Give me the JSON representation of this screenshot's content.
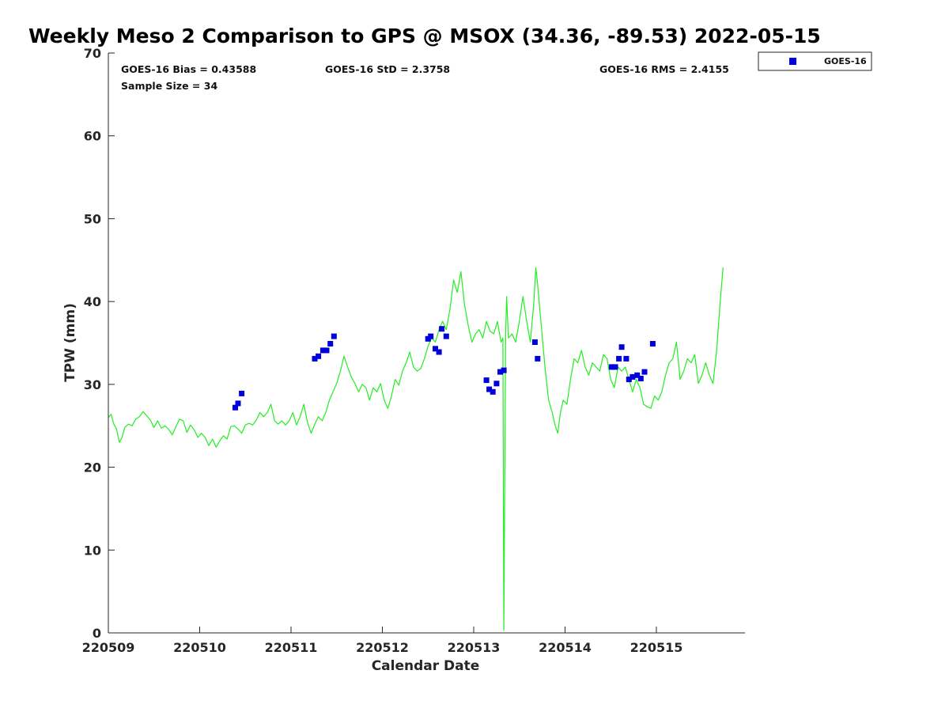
{
  "chart_data": {
    "type": "scatter",
    "title": "Weekly Meso 2 Comparison to GPS @ MSOX (34.36, -89.53) 2022-05-15",
    "xlabel": "Calendar Date",
    "ylabel": "TPW (mm)",
    "x_unit": "days",
    "xlim": [
      0,
      6.97
    ],
    "ylim": [
      0,
      70
    ],
    "x_ticks": [
      0,
      1,
      2,
      3,
      4,
      5,
      6
    ],
    "x_tick_labels": [
      "220509",
      "220510",
      "220511",
      "220512",
      "220513",
      "220514",
      "220515"
    ],
    "y_ticks": [
      0,
      10,
      20,
      30,
      40,
      50,
      60,
      70
    ],
    "y_tick_labels": [
      "0",
      "10",
      "20",
      "30",
      "40",
      "50",
      "60",
      "70"
    ],
    "grid": false,
    "legend_placement": "outside-top-right",
    "stats": {
      "bias": "GOES-16 Bias = 0.43588",
      "std": "GOES-16 StD = 2.3758",
      "rms": "GOES-16 RMS = 2.4155",
      "sample": "Sample Size = 34"
    },
    "series": [
      {
        "name": "GOES-16",
        "kind": "markers",
        "color": "#0000dd",
        "points": [
          [
            1.39,
            27.2
          ],
          [
            1.42,
            27.7
          ],
          [
            1.46,
            28.9
          ],
          [
            2.26,
            33.1
          ],
          [
            2.3,
            33.4
          ],
          [
            2.35,
            34.1
          ],
          [
            2.39,
            34.1
          ],
          [
            2.43,
            34.9
          ],
          [
            2.47,
            35.8
          ],
          [
            3.5,
            35.5
          ],
          [
            3.53,
            35.8
          ],
          [
            3.58,
            34.3
          ],
          [
            3.62,
            33.9
          ],
          [
            3.65,
            36.7
          ],
          [
            3.7,
            35.8
          ],
          [
            4.14,
            30.5
          ],
          [
            4.17,
            29.4
          ],
          [
            4.21,
            29.1
          ],
          [
            4.25,
            30.1
          ],
          [
            4.29,
            31.5
          ],
          [
            4.33,
            31.7
          ],
          [
            4.67,
            35.1
          ],
          [
            4.7,
            33.1
          ],
          [
            5.51,
            32.1
          ],
          [
            5.55,
            32.1
          ],
          [
            5.59,
            33.1
          ],
          [
            5.62,
            34.5
          ],
          [
            5.67,
            33.1
          ],
          [
            5.7,
            30.6
          ],
          [
            5.74,
            30.9
          ],
          [
            5.79,
            31.1
          ],
          [
            5.83,
            30.7
          ],
          [
            5.87,
            31.5
          ],
          [
            5.96,
            34.9
          ]
        ]
      },
      {
        "name": "",
        "kind": "line",
        "color": "#22ee22",
        "points": [
          [
            0.0,
            26.0
          ],
          [
            0.03,
            26.4
          ],
          [
            0.06,
            25.2
          ],
          [
            0.09,
            24.6
          ],
          [
            0.12,
            23.0
          ],
          [
            0.15,
            23.6
          ],
          [
            0.18,
            24.8
          ],
          [
            0.22,
            25.2
          ],
          [
            0.26,
            25.0
          ],
          [
            0.3,
            25.8
          ],
          [
            0.34,
            26.1
          ],
          [
            0.38,
            26.7
          ],
          [
            0.42,
            26.2
          ],
          [
            0.46,
            25.7
          ],
          [
            0.5,
            24.8
          ],
          [
            0.54,
            25.6
          ],
          [
            0.58,
            24.7
          ],
          [
            0.62,
            25.0
          ],
          [
            0.66,
            24.6
          ],
          [
            0.7,
            23.9
          ],
          [
            0.74,
            24.9
          ],
          [
            0.78,
            25.8
          ],
          [
            0.82,
            25.6
          ],
          [
            0.86,
            24.2
          ],
          [
            0.9,
            25.1
          ],
          [
            0.94,
            24.5
          ],
          [
            0.98,
            23.6
          ],
          [
            1.02,
            24.1
          ],
          [
            1.06,
            23.6
          ],
          [
            1.1,
            22.6
          ],
          [
            1.14,
            23.4
          ],
          [
            1.18,
            22.4
          ],
          [
            1.22,
            23.2
          ],
          [
            1.26,
            23.8
          ],
          [
            1.3,
            23.4
          ],
          [
            1.34,
            24.9
          ],
          [
            1.38,
            25.0
          ],
          [
            1.42,
            24.6
          ],
          [
            1.46,
            24.1
          ],
          [
            1.5,
            25.1
          ],
          [
            1.54,
            25.3
          ],
          [
            1.58,
            25.1
          ],
          [
            1.62,
            25.7
          ],
          [
            1.66,
            26.6
          ],
          [
            1.7,
            26.1
          ],
          [
            1.74,
            26.6
          ],
          [
            1.78,
            27.6
          ],
          [
            1.82,
            25.6
          ],
          [
            1.86,
            25.2
          ],
          [
            1.9,
            25.6
          ],
          [
            1.94,
            25.1
          ],
          [
            1.98,
            25.6
          ],
          [
            2.02,
            26.6
          ],
          [
            2.06,
            25.1
          ],
          [
            2.1,
            26.1
          ],
          [
            2.14,
            27.6
          ],
          [
            2.18,
            25.4
          ],
          [
            2.22,
            24.1
          ],
          [
            2.26,
            25.2
          ],
          [
            2.3,
            26.1
          ],
          [
            2.34,
            25.6
          ],
          [
            2.38,
            26.6
          ],
          [
            2.42,
            28.1
          ],
          [
            2.46,
            29.1
          ],
          [
            2.5,
            30.1
          ],
          [
            2.54,
            31.6
          ],
          [
            2.58,
            33.4
          ],
          [
            2.62,
            32.1
          ],
          [
            2.66,
            30.9
          ],
          [
            2.7,
            30.1
          ],
          [
            2.74,
            29.1
          ],
          [
            2.78,
            30.0
          ],
          [
            2.82,
            29.6
          ],
          [
            2.86,
            28.1
          ],
          [
            2.9,
            29.6
          ],
          [
            2.94,
            29.1
          ],
          [
            2.98,
            30.1
          ],
          [
            3.02,
            28.1
          ],
          [
            3.06,
            27.1
          ],
          [
            3.1,
            28.6
          ],
          [
            3.14,
            30.6
          ],
          [
            3.18,
            29.9
          ],
          [
            3.22,
            31.6
          ],
          [
            3.26,
            32.6
          ],
          [
            3.3,
            33.9
          ],
          [
            3.34,
            32.1
          ],
          [
            3.38,
            31.6
          ],
          [
            3.42,
            31.9
          ],
          [
            3.46,
            33.1
          ],
          [
            3.5,
            34.6
          ],
          [
            3.54,
            35.6
          ],
          [
            3.58,
            35.1
          ],
          [
            3.62,
            36.6
          ],
          [
            3.66,
            37.6
          ],
          [
            3.7,
            36.6
          ],
          [
            3.74,
            39.1
          ],
          [
            3.78,
            42.6
          ],
          [
            3.82,
            41.1
          ],
          [
            3.86,
            43.6
          ],
          [
            3.9,
            39.6
          ],
          [
            3.94,
            37.1
          ],
          [
            3.98,
            35.1
          ],
          [
            4.02,
            36.1
          ],
          [
            4.06,
            36.6
          ],
          [
            4.1,
            35.6
          ],
          [
            4.14,
            37.6
          ],
          [
            4.18,
            36.4
          ],
          [
            4.22,
            36.1
          ],
          [
            4.26,
            37.6
          ],
          [
            4.3,
            35.1
          ],
          [
            4.32,
            35.6
          ],
          [
            4.33,
            0.3
          ],
          [
            4.35,
            36.1
          ],
          [
            4.36,
            40.6
          ],
          [
            4.38,
            35.6
          ],
          [
            4.42,
            36.1
          ],
          [
            4.46,
            35.1
          ],
          [
            4.5,
            37.6
          ],
          [
            4.54,
            40.6
          ],
          [
            4.58,
            37.6
          ],
          [
            4.62,
            35.1
          ],
          [
            4.66,
            40.1
          ],
          [
            4.68,
            44.1
          ],
          [
            4.7,
            42.1
          ],
          [
            4.74,
            37.1
          ],
          [
            4.78,
            32.1
          ],
          [
            4.82,
            28.1
          ],
          [
            4.86,
            26.6
          ],
          [
            4.89,
            25.1
          ],
          [
            4.92,
            24.1
          ],
          [
            4.95,
            26.6
          ],
          [
            4.98,
            28.1
          ],
          [
            5.02,
            27.6
          ],
          [
            5.06,
            30.6
          ],
          [
            5.1,
            33.1
          ],
          [
            5.14,
            32.6
          ],
          [
            5.18,
            34.1
          ],
          [
            5.22,
            32.1
          ],
          [
            5.26,
            31.1
          ],
          [
            5.3,
            32.6
          ],
          [
            5.34,
            32.1
          ],
          [
            5.38,
            31.6
          ],
          [
            5.42,
            33.6
          ],
          [
            5.46,
            33.1
          ],
          [
            5.5,
            30.6
          ],
          [
            5.54,
            29.6
          ],
          [
            5.58,
            32.1
          ],
          [
            5.62,
            31.6
          ],
          [
            5.66,
            32.1
          ],
          [
            5.7,
            30.6
          ],
          [
            5.74,
            29.1
          ],
          [
            5.78,
            30.6
          ],
          [
            5.82,
            29.6
          ],
          [
            5.86,
            27.6
          ],
          [
            5.9,
            27.3
          ],
          [
            5.94,
            27.1
          ],
          [
            5.98,
            28.6
          ],
          [
            6.02,
            28.1
          ],
          [
            6.06,
            29.1
          ],
          [
            6.1,
            31.1
          ],
          [
            6.14,
            32.6
          ],
          [
            6.18,
            33.1
          ],
          [
            6.22,
            35.1
          ],
          [
            6.26,
            30.6
          ],
          [
            6.3,
            31.6
          ],
          [
            6.34,
            33.1
          ],
          [
            6.38,
            32.6
          ],
          [
            6.42,
            33.6
          ],
          [
            6.46,
            30.1
          ],
          [
            6.5,
            31.1
          ],
          [
            6.54,
            32.6
          ],
          [
            6.58,
            31.1
          ],
          [
            6.62,
            30.1
          ],
          [
            6.66,
            34.1
          ],
          [
            6.7,
            40.1
          ],
          [
            6.73,
            44.1
          ]
        ]
      }
    ]
  }
}
